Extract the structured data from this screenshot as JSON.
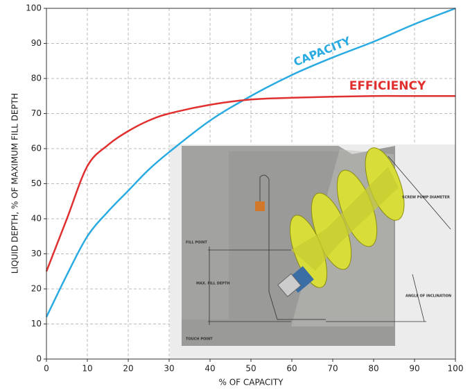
{
  "chart_data": {
    "type": "line",
    "x_label": "% OF CAPACITY",
    "y_label": "LIQUID DEPTH, % OF MAXIMUM FILL DEPTH",
    "x": [
      0,
      5,
      10,
      15,
      20,
      25,
      30,
      40,
      50,
      60,
      70,
      80,
      90,
      100
    ],
    "series": [
      {
        "name": "CAPACITY",
        "color": "#29abe2",
        "values": [
          12,
          24,
          35,
          42,
          48,
          54,
          59,
          68,
          75,
          81,
          86,
          90.5,
          95.5,
          100
        ]
      },
      {
        "name": "EFFICIENCY",
        "color": "#e03030",
        "values": [
          25,
          40,
          55,
          61,
          65,
          68,
          70,
          72.5,
          74,
          74.5,
          74.8,
          75,
          75,
          75
        ]
      }
    ],
    "xlim": [
      0,
      100
    ],
    "ylim": [
      0,
      100
    ],
    "xticks": [
      0,
      10,
      20,
      30,
      40,
      50,
      60,
      70,
      80,
      90,
      100
    ],
    "yticks": [
      0,
      10,
      20,
      30,
      40,
      50,
      60,
      70,
      80,
      90,
      100
    ],
    "grid": true,
    "diagram_labels": [
      "FILL POINT",
      "MAX. FILL DEPTH",
      "TOUCH POINT",
      "SCREW PUMP DIAMETER",
      "ANGLE OF INCLINATION"
    ]
  }
}
